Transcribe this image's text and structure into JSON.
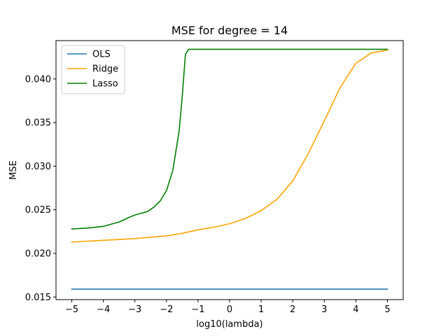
{
  "chart_data": {
    "type": "line",
    "title": "MSE for degree = 14",
    "xlabel": "log10(lambda)",
    "ylabel": "MSE",
    "xlim": [
      -5.5,
      5.5
    ],
    "ylim": [
      0.0147,
      0.0444
    ],
    "xticks": [
      -5,
      -4,
      -3,
      -2,
      -1,
      0,
      1,
      2,
      3,
      4,
      5
    ],
    "xtick_labels": [
      "−5",
      "−4",
      "−3",
      "−2",
      "−1",
      "0",
      "1",
      "2",
      "3",
      "4",
      "5"
    ],
    "yticks": [
      0.015,
      0.02,
      0.025,
      0.03,
      0.035,
      0.04
    ],
    "ytick_labels": [
      "0.015",
      "0.020",
      "0.025",
      "0.030",
      "0.035",
      "0.040"
    ],
    "grid": false,
    "legend_position": "upper-left",
    "series": [
      {
        "name": "OLS",
        "color": "#1f77b4",
        "points": [
          [
            -5,
            0.0159
          ],
          [
            5,
            0.0159
          ]
        ]
      },
      {
        "name": "Ridge",
        "color": "#ffa500",
        "points": [
          [
            -5,
            0.0213
          ],
          [
            -4,
            0.0215
          ],
          [
            -3,
            0.0217
          ],
          [
            -2,
            0.022
          ],
          [
            -1.5,
            0.0223
          ],
          [
            -1,
            0.0227
          ],
          [
            -0.5,
            0.023
          ],
          [
            0,
            0.0234
          ],
          [
            0.5,
            0.024
          ],
          [
            1,
            0.0249
          ],
          [
            1.5,
            0.0262
          ],
          [
            2,
            0.0283
          ],
          [
            2.5,
            0.0315
          ],
          [
            3,
            0.0352
          ],
          [
            3.5,
            0.039
          ],
          [
            4,
            0.0418
          ],
          [
            4.5,
            0.043
          ],
          [
            5,
            0.0433
          ]
        ]
      },
      {
        "name": "Lasso",
        "color": "#008000",
        "points": [
          [
            -5,
            0.0228
          ],
          [
            -4.5,
            0.0229
          ],
          [
            -4,
            0.0231
          ],
          [
            -3.5,
            0.0236
          ],
          [
            -3.2,
            0.0241
          ],
          [
            -3,
            0.0244
          ],
          [
            -2.6,
            0.0248
          ],
          [
            -2.4,
            0.0253
          ],
          [
            -2.2,
            0.026
          ],
          [
            -2,
            0.0272
          ],
          [
            -1.8,
            0.0295
          ],
          [
            -1.6,
            0.034
          ],
          [
            -1.5,
            0.038
          ],
          [
            -1.4,
            0.0428
          ],
          [
            -1.3,
            0.0434
          ],
          [
            0,
            0.0434
          ],
          [
            2,
            0.0434
          ],
          [
            5,
            0.0434
          ]
        ]
      }
    ]
  }
}
